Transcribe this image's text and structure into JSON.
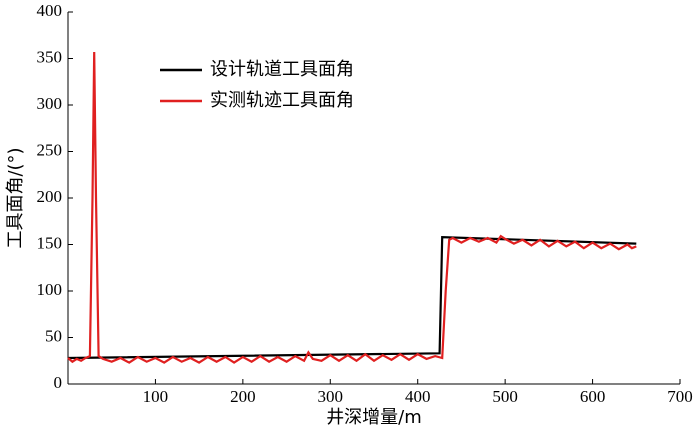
{
  "chart_data": {
    "type": "line",
    "x_label": "井深增量/m",
    "y_label": "工具面角/(°)",
    "xlim": [
      0,
      700
    ],
    "ylim": [
      0,
      400
    ],
    "xticks": [
      100,
      200,
      300,
      400,
      500,
      600,
      700
    ],
    "yticks": [
      0,
      50,
      100,
      150,
      200,
      250,
      300,
      350,
      400
    ],
    "series": [
      {
        "name": "设计轨道工具面角",
        "color": "#000000",
        "x": [
          0,
          425,
          428,
          650
        ],
        "values": [
          28,
          33,
          158,
          151
        ]
      },
      {
        "name": "实测轨迹工具面角",
        "color": "#e02020",
        "x": [
          0,
          5,
          10,
          15,
          20,
          25,
          28,
          30,
          32,
          35,
          40,
          50,
          60,
          70,
          80,
          90,
          100,
          110,
          120,
          130,
          140,
          150,
          160,
          170,
          180,
          190,
          200,
          210,
          220,
          230,
          240,
          250,
          260,
          270,
          275,
          280,
          290,
          300,
          310,
          320,
          330,
          340,
          350,
          360,
          370,
          380,
          390,
          400,
          410,
          420,
          428,
          432,
          436,
          440,
          450,
          460,
          470,
          480,
          490,
          495,
          500,
          510,
          520,
          530,
          540,
          550,
          560,
          570,
          580,
          590,
          600,
          610,
          620,
          630,
          640,
          645,
          650
        ],
        "values": [
          28,
          24,
          27,
          25,
          28,
          30,
          200,
          357,
          200,
          30,
          27,
          24,
          28,
          23,
          29,
          24,
          28,
          23,
          29,
          24,
          28,
          23,
          29,
          24,
          29,
          23,
          29,
          24,
          30,
          24,
          29,
          24,
          30,
          25,
          34,
          27,
          25,
          31,
          25,
          31,
          25,
          32,
          25,
          31,
          26,
          32,
          26,
          32,
          27,
          30,
          28,
          100,
          155,
          157,
          152,
          157,
          153,
          157,
          152,
          159,
          156,
          151,
          155,
          149,
          155,
          148,
          154,
          148,
          153,
          146,
          152,
          146,
          151,
          145,
          150,
          146,
          148
        ]
      }
    ]
  }
}
